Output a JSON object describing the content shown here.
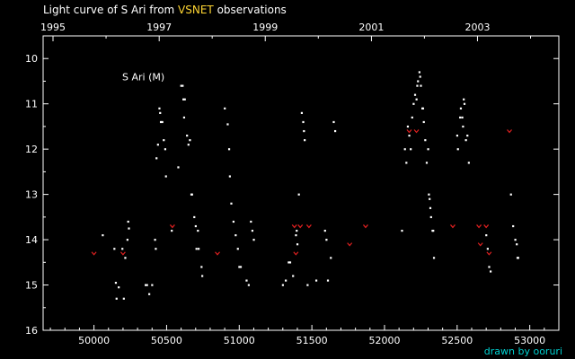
{
  "title": {
    "prefix": "Light curve of S Ari from ",
    "highlight": "VSNET",
    "suffix": " observations"
  },
  "credit": "drawn by ooruri",
  "colors": {
    "background": "#000000",
    "axes": "#ffffff",
    "visual": "#ffffff",
    "upper_limit": "#e02020",
    "title_highlight": "#ffd633",
    "credit": "#00d0d0"
  },
  "chart_data": {
    "type": "scatter",
    "label": "S Ari (M)",
    "xlabel": "",
    "ylabel": "",
    "xlim": [
      49650,
      53200
    ],
    "ylim": [
      16,
      9.5
    ],
    "y_inverted": true,
    "x_ticks": [
      50000,
      50500,
      51000,
      51500,
      52000,
      52500,
      53000
    ],
    "x_tick_labels": [
      "50000",
      "50500",
      "51000",
      "51500",
      "52000",
      "52500",
      "53000"
    ],
    "y_ticks": [
      10,
      11,
      12,
      13,
      14,
      15,
      16
    ],
    "year_ticks": [
      {
        "label": "1995",
        "jd": 49718
      },
      {
        "label": "1997",
        "jd": 50449
      },
      {
        "label": "1999",
        "jd": 51179
      },
      {
        "label": "2001",
        "jd": 51910
      },
      {
        "label": "2003",
        "jd": 52640
      }
    ],
    "grid": false,
    "series": [
      {
        "kind": "observation",
        "points": [
          [
            50060,
            13.9
          ],
          [
            50140,
            14.2
          ],
          [
            50150,
            14.95
          ],
          [
            50155,
            15.3
          ],
          [
            50170,
            15.05
          ],
          [
            50195,
            14.2
          ],
          [
            50205,
            15.3
          ],
          [
            50215,
            14.4
          ],
          [
            50230,
            14.0
          ],
          [
            50235,
            13.6
          ],
          [
            50240,
            13.75
          ],
          [
            50355,
            15.0
          ],
          [
            50365,
            15.0
          ],
          [
            50380,
            15.2
          ],
          [
            50400,
            15.0
          ],
          [
            50420,
            14.0
          ],
          [
            50425,
            14.2
          ],
          [
            50430,
            12.2
          ],
          [
            50440,
            11.9
          ],
          [
            50450,
            11.1
          ],
          [
            50455,
            11.2
          ],
          [
            50460,
            11.4
          ],
          [
            50470,
            11.4
          ],
          [
            50480,
            11.8
          ],
          [
            50490,
            12.0
          ],
          [
            50495,
            12.6
          ],
          [
            50535,
            13.8
          ],
          [
            50580,
            12.4
          ],
          [
            50600,
            10.6
          ],
          [
            50610,
            10.6
          ],
          [
            50615,
            10.9
          ],
          [
            50620,
            11.3
          ],
          [
            50625,
            10.9
          ],
          [
            50640,
            11.7
          ],
          [
            50650,
            11.9
          ],
          [
            50660,
            11.8
          ],
          [
            50670,
            13.0
          ],
          [
            50675,
            13.0
          ],
          [
            50690,
            13.5
          ],
          [
            50700,
            13.7
          ],
          [
            50705,
            14.2
          ],
          [
            50715,
            13.8
          ],
          [
            50720,
            14.2
          ],
          [
            50740,
            14.6
          ],
          [
            50745,
            14.8
          ],
          [
            50900,
            11.1
          ],
          [
            50920,
            11.45
          ],
          [
            50930,
            12.0
          ],
          [
            50935,
            12.6
          ],
          [
            50945,
            13.2
          ],
          [
            50960,
            13.6
          ],
          [
            50975,
            13.9
          ],
          [
            50990,
            14.2
          ],
          [
            51000,
            14.6
          ],
          [
            51010,
            14.6
          ],
          [
            51050,
            14.9
          ],
          [
            51065,
            15.0
          ],
          [
            51080,
            13.6
          ],
          [
            51090,
            13.8
          ],
          [
            51100,
            14.0
          ],
          [
            51300,
            15.0
          ],
          [
            51320,
            14.9
          ],
          [
            51340,
            14.5
          ],
          [
            51350,
            14.5
          ],
          [
            51370,
            14.8
          ],
          [
            51390,
            13.9
          ],
          [
            51395,
            13.8
          ],
          [
            51400,
            14.1
          ],
          [
            51410,
            13.0
          ],
          [
            51430,
            11.2
          ],
          [
            51440,
            11.4
          ],
          [
            51445,
            11.6
          ],
          [
            51450,
            11.8
          ],
          [
            51470,
            15.0
          ],
          [
            51530,
            14.9
          ],
          [
            51590,
            13.8
          ],
          [
            51600,
            14.0
          ],
          [
            51610,
            14.9
          ],
          [
            51630,
            14.4
          ],
          [
            51650,
            11.4
          ],
          [
            51660,
            11.6
          ],
          [
            52120,
            13.8
          ],
          [
            52140,
            12.0
          ],
          [
            52150,
            12.3
          ],
          [
            52160,
            11.5
          ],
          [
            52170,
            11.7
          ],
          [
            52180,
            12.0
          ],
          [
            52190,
            11.3
          ],
          [
            52200,
            11.0
          ],
          [
            52210,
            10.8
          ],
          [
            52220,
            10.9
          ],
          [
            52225,
            10.6
          ],
          [
            52230,
            10.5
          ],
          [
            52240,
            10.3
          ],
          [
            52245,
            10.4
          ],
          [
            52250,
            10.6
          ],
          [
            52260,
            11.1
          ],
          [
            52265,
            11.1
          ],
          [
            52270,
            11.4
          ],
          [
            52280,
            11.8
          ],
          [
            52290,
            12.3
          ],
          [
            52300,
            12.0
          ],
          [
            52305,
            13.0
          ],
          [
            52310,
            13.1
          ],
          [
            52315,
            13.3
          ],
          [
            52320,
            13.5
          ],
          [
            52330,
            13.8
          ],
          [
            52335,
            13.8
          ],
          [
            52340,
            14.4
          ],
          [
            52500,
            11.7
          ],
          [
            52505,
            12.0
          ],
          [
            52520,
            11.3
          ],
          [
            52525,
            11.1
          ],
          [
            52535,
            11.3
          ],
          [
            52540,
            11.5
          ],
          [
            52545,
            10.9
          ],
          [
            52550,
            11.0
          ],
          [
            52560,
            11.8
          ],
          [
            52570,
            11.7
          ],
          [
            52580,
            12.3
          ],
          [
            52700,
            13.9
          ],
          [
            52710,
            14.2
          ],
          [
            52720,
            14.6
          ],
          [
            52730,
            14.7
          ],
          [
            52870,
            13.0
          ],
          [
            52885,
            13.7
          ],
          [
            52900,
            14.0
          ],
          [
            52910,
            14.1
          ],
          [
            52915,
            14.4
          ],
          [
            52920,
            14.4
          ]
        ]
      },
      {
        "kind": "upper_limit",
        "points": [
          [
            50000,
            14.3
          ],
          [
            50200,
            14.3
          ],
          [
            50540,
            13.7
          ],
          [
            50850,
            14.3
          ],
          [
            51380,
            13.7
          ],
          [
            51390,
            14.3
          ],
          [
            51420,
            13.7
          ],
          [
            51480,
            13.7
          ],
          [
            51760,
            14.1
          ],
          [
            51870,
            13.7
          ],
          [
            52170,
            11.6
          ],
          [
            52220,
            11.6
          ],
          [
            52470,
            13.7
          ],
          [
            52650,
            13.7
          ],
          [
            52660,
            14.1
          ],
          [
            52700,
            13.7
          ],
          [
            52720,
            14.3
          ],
          [
            52860,
            11.6
          ]
        ]
      }
    ]
  }
}
